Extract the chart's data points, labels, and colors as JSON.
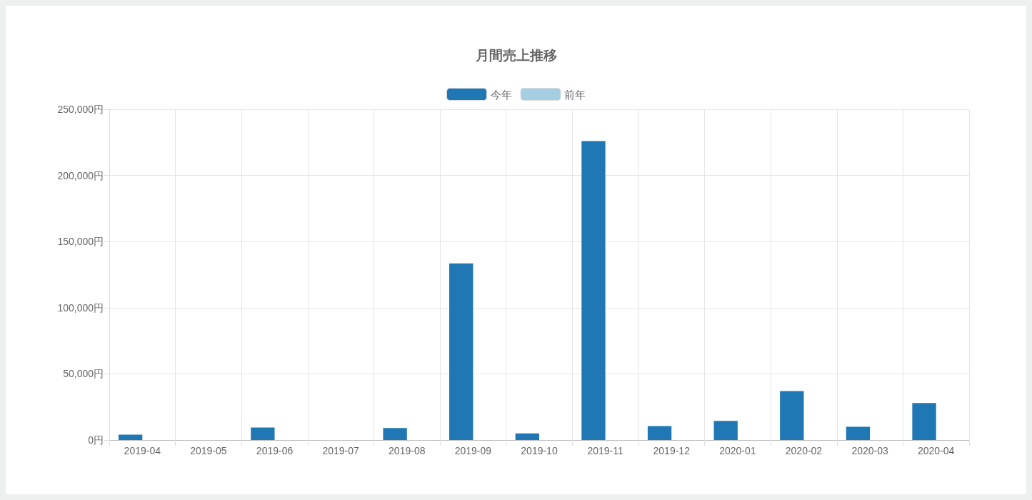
{
  "chart_data": {
    "type": "bar",
    "title": "月間売上推移",
    "categories": [
      "2019-04",
      "2019-05",
      "2019-06",
      "2019-07",
      "2019-08",
      "2019-09",
      "2019-10",
      "2019-11",
      "2019-12",
      "2020-01",
      "2020-02",
      "2020-03",
      "2020-04"
    ],
    "series": [
      {
        "name": "今年",
        "color": "#1f78b4",
        "values": [
          4000,
          0,
          9500,
          0,
          9000,
          133500,
          5000,
          226000,
          10500,
          14500,
          37000,
          10000,
          28000
        ]
      },
      {
        "name": "前年",
        "color": "#a6cee3",
        "values": [
          0,
          0,
          0,
          0,
          0,
          0,
          0,
          0,
          0,
          0,
          0,
          0,
          0
        ]
      }
    ],
    "ylim": [
      0,
      250000
    ],
    "yticks": [
      {
        "value": 0,
        "label": "0円"
      },
      {
        "value": 50000,
        "label": "50,000円"
      },
      {
        "value": 100000,
        "label": "100,000円"
      },
      {
        "value": 150000,
        "label": "150,000円"
      },
      {
        "value": 200000,
        "label": "200,000円"
      },
      {
        "value": 250000,
        "label": "250,000円"
      }
    ],
    "grid": true,
    "legend": "top"
  }
}
